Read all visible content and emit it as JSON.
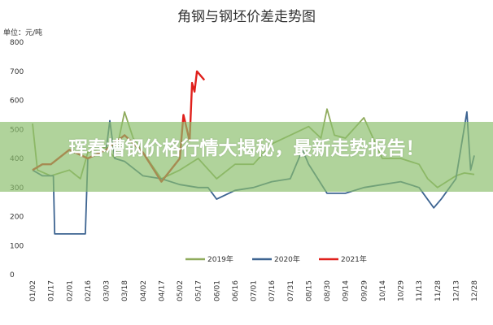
{
  "chart_data": {
    "type": "line",
    "title": "角钢与钢坯价差走势图",
    "ylabel": "单位：元/吨",
    "ylim": [
      0,
      800
    ],
    "yticks": [
      "0",
      "100",
      "200",
      "300",
      "400",
      "500",
      "600",
      "700",
      "800"
    ],
    "xticks": [
      "01/02",
      "01/17",
      "02/01",
      "02/16",
      "03/03",
      "03/18",
      "04/02",
      "04/17",
      "05/02",
      "05/17",
      "06/01",
      "06/16",
      "07/01",
      "07/16",
      "07/31",
      "08/15",
      "08/30",
      "09/14",
      "09/29",
      "10/14",
      "10/29",
      "11/13",
      "11/28",
      "12/13",
      "12/28"
    ],
    "grid": false,
    "legend": "bottom",
    "series": [
      {
        "name": "2019年",
        "color": "#8fab5c",
        "points": [
          [
            "01/02",
            520
          ],
          [
            "01/06",
            360
          ],
          [
            "01/17",
            340
          ],
          [
            "02/01",
            360
          ],
          [
            "02/10",
            330
          ],
          [
            "02/16",
            420
          ],
          [
            "03/03",
            440
          ],
          [
            "03/10",
            400
          ],
          [
            "03/18",
            560
          ],
          [
            "03/25",
            470
          ],
          [
            "04/02",
            420
          ],
          [
            "04/17",
            330
          ],
          [
            "05/02",
            360
          ],
          [
            "05/17",
            400
          ],
          [
            "06/01",
            330
          ],
          [
            "06/16",
            380
          ],
          [
            "07/01",
            380
          ],
          [
            "07/16",
            450
          ],
          [
            "07/31",
            480
          ],
          [
            "08/15",
            510
          ],
          [
            "08/25",
            470
          ],
          [
            "08/30",
            570
          ],
          [
            "09/05",
            480
          ],
          [
            "09/14",
            470
          ],
          [
            "09/29",
            540
          ],
          [
            "10/14",
            400
          ],
          [
            "10/29",
            400
          ],
          [
            "11/13",
            380
          ],
          [
            "11/20",
            330
          ],
          [
            "11/28",
            300
          ],
          [
            "12/13",
            340
          ],
          [
            "12/20",
            350
          ],
          [
            "12/28",
            345
          ]
        ]
      },
      {
        "name": "2020年",
        "color": "#3d6491",
        "points": [
          [
            "01/02",
            360
          ],
          [
            "01/10",
            340
          ],
          [
            "01/19",
            340
          ],
          [
            "01/20",
            140
          ],
          [
            "02/14",
            140
          ],
          [
            "02/16",
            400
          ],
          [
            "03/03",
            430
          ],
          [
            "03/06",
            530
          ],
          [
            "03/10",
            400
          ],
          [
            "03/18",
            390
          ],
          [
            "04/02",
            340
          ],
          [
            "04/17",
            330
          ],
          [
            "05/02",
            310
          ],
          [
            "05/17",
            300
          ],
          [
            "05/25",
            300
          ],
          [
            "06/01",
            260
          ],
          [
            "06/16",
            290
          ],
          [
            "07/01",
            300
          ],
          [
            "07/16",
            320
          ],
          [
            "07/31",
            330
          ],
          [
            "08/10",
            430
          ],
          [
            "08/15",
            380
          ],
          [
            "08/30",
            280
          ],
          [
            "09/14",
            280
          ],
          [
            "09/29",
            300
          ],
          [
            "10/14",
            310
          ],
          [
            "10/29",
            320
          ],
          [
            "11/13",
            300
          ],
          [
            "11/25",
            230
          ],
          [
            "12/01",
            260
          ],
          [
            "12/13",
            330
          ],
          [
            "12/22",
            560
          ],
          [
            "12/25",
            360
          ],
          [
            "12/28",
            410
          ]
        ]
      },
      {
        "name": "2021年",
        "color": "#e0201c",
        "points": [
          [
            "01/02",
            360
          ],
          [
            "01/10",
            380
          ],
          [
            "01/17",
            380
          ],
          [
            "02/01",
            430
          ],
          [
            "02/16",
            400
          ],
          [
            "03/03",
            430
          ],
          [
            "03/18",
            480
          ],
          [
            "04/02",
            420
          ],
          [
            "04/17",
            320
          ],
          [
            "05/02",
            400
          ],
          [
            "05/05",
            550
          ],
          [
            "05/10",
            460
          ],
          [
            "05/12",
            660
          ],
          [
            "05/14",
            630
          ],
          [
            "05/16",
            700
          ],
          [
            "05/22",
            670
          ]
        ]
      }
    ]
  },
  "overlay": {
    "headline": "珲春槽钢价格行情大揭秘，最新走势报告！"
  }
}
